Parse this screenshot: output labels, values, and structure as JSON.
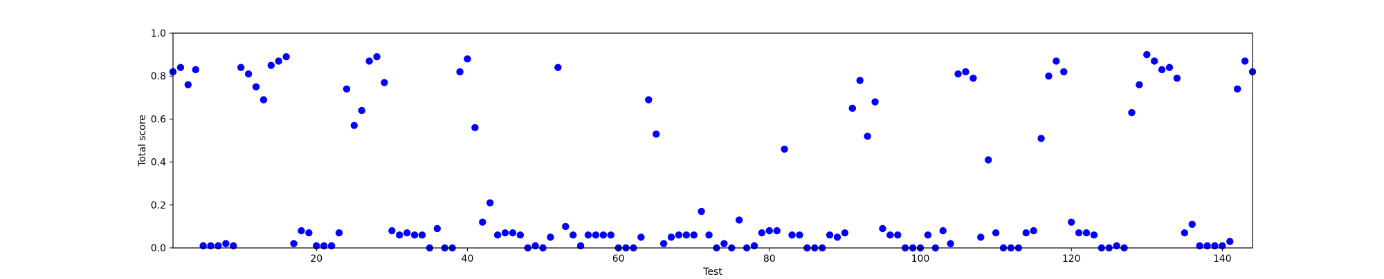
{
  "chart_data": {
    "type": "scatter",
    "title": "",
    "xlabel": "Test",
    "ylabel": "Total score",
    "xlim": [
      1,
      144
    ],
    "ylim": [
      0.0,
      1.0
    ],
    "xticks": [
      20,
      40,
      60,
      80,
      100,
      120,
      140
    ],
    "yticks": [
      0.0,
      0.2,
      0.4,
      0.6,
      0.8,
      1.0
    ],
    "ytick_labels": [
      "0.0",
      "0.2",
      "0.4",
      "0.6",
      "0.8",
      "1.0"
    ],
    "grid": false,
    "marker_color": "#0000ff",
    "x": [
      1,
      2,
      3,
      4,
      5,
      6,
      7,
      8,
      9,
      10,
      11,
      12,
      13,
      14,
      15,
      16,
      17,
      18,
      19,
      20,
      21,
      22,
      23,
      24,
      25,
      26,
      27,
      28,
      29,
      30,
      31,
      32,
      33,
      34,
      35,
      36,
      37,
      38,
      39,
      40,
      41,
      42,
      43,
      44,
      45,
      46,
      47,
      48,
      49,
      50,
      51,
      52,
      53,
      54,
      55,
      56,
      57,
      58,
      59,
      60,
      61,
      62,
      63,
      64,
      65,
      66,
      67,
      68,
      69,
      70,
      71,
      72,
      73,
      74,
      75,
      76,
      77,
      78,
      79,
      80,
      81,
      82,
      83,
      84,
      85,
      86,
      87,
      88,
      89,
      90,
      91,
      92,
      93,
      94,
      95,
      96,
      97,
      98,
      99,
      100,
      101,
      102,
      103,
      104,
      105,
      106,
      107,
      108,
      109,
      110,
      111,
      112,
      113,
      114,
      115,
      116,
      117,
      118,
      119,
      120,
      121,
      122,
      123,
      124,
      125,
      126,
      127,
      128,
      129,
      130,
      131,
      132,
      133,
      134,
      135,
      136,
      137,
      138,
      139,
      140,
      141,
      142,
      143,
      144
    ],
    "y": [
      0.82,
      0.84,
      0.76,
      0.83,
      0.01,
      0.01,
      0.01,
      0.02,
      0.01,
      0.84,
      0.81,
      0.75,
      0.69,
      0.85,
      0.87,
      0.89,
      0.02,
      0.08,
      0.07,
      0.01,
      0.01,
      0.01,
      0.07,
      0.74,
      0.57,
      0.64,
      0.87,
      0.89,
      0.77,
      0.08,
      0.06,
      0.07,
      0.06,
      0.06,
      0.0,
      0.09,
      0.0,
      0.0,
      0.82,
      0.88,
      0.56,
      0.12,
      0.21,
      0.06,
      0.07,
      0.07,
      0.06,
      0.0,
      0.01,
      0.0,
      0.05,
      0.84,
      0.1,
      0.06,
      0.01,
      0.06,
      0.06,
      0.06,
      0.06,
      0.0,
      0.0,
      0.0,
      0.05,
      0.69,
      0.53,
      0.02,
      0.05,
      0.06,
      0.06,
      0.06,
      0.17,
      0.06,
      0.0,
      0.02,
      0.0,
      0.13,
      0.0,
      0.01,
      0.07,
      0.08,
      0.08,
      0.46,
      0.06,
      0.06,
      0.0,
      0.0,
      0.0,
      0.06,
      0.05,
      0.07,
      0.65,
      0.78,
      0.52,
      0.68,
      0.09,
      0.06,
      0.06,
      0.0,
      0.0,
      0.0,
      0.06,
      0.0,
      0.08,
      0.02,
      0.81,
      0.82,
      0.79,
      0.05,
      0.41,
      0.07,
      0.0,
      0.0,
      0.0,
      0.07,
      0.08,
      0.51,
      0.8,
      0.87,
      0.82,
      0.12,
      0.07,
      0.07,
      0.06,
      0.0,
      0.0,
      0.01,
      0.0,
      0.63,
      0.76,
      0.9,
      0.87,
      0.83,
      0.84,
      0.79,
      0.07,
      0.11,
      0.01,
      0.01,
      0.01,
      0.01,
      0.03,
      0.74,
      0.87,
      0.82
    ]
  }
}
